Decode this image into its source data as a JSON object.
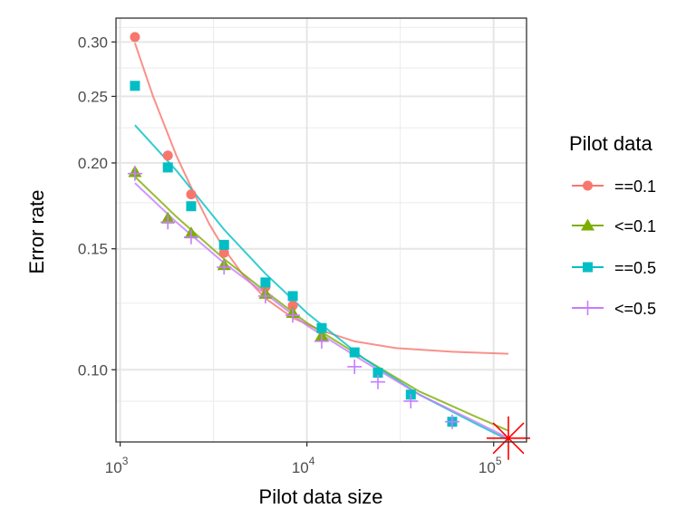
{
  "chart_data": {
    "type": "scatter",
    "xlabel": "Pilot data size",
    "ylabel": "Error rate",
    "xscale": "log10",
    "yscale": "log10",
    "xlim": [
      950,
      150000
    ],
    "ylim": [
      0.0785,
      0.325
    ],
    "x_ticks": [
      {
        "value": 1000,
        "base": "10",
        "exp": "3"
      },
      {
        "value": 10000,
        "base": "10",
        "exp": "4"
      },
      {
        "value": 100000,
        "base": "10",
        "exp": "5"
      }
    ],
    "y_ticks": [
      {
        "value": 0.1,
        "label": "0.10"
      },
      {
        "value": 0.15,
        "label": "0.15"
      },
      {
        "value": 0.2,
        "label": "0.20"
      },
      {
        "value": 0.25,
        "label": "0.25"
      },
      {
        "value": 0.3,
        "label": "0.30"
      }
    ],
    "grid": true,
    "legend": {
      "title": "Pilot data",
      "position": "right"
    },
    "series": [
      {
        "name": "==0.1",
        "color": "#F8766D",
        "marker": "circle",
        "points": [
          [
            1200,
            0.305
          ],
          [
            1800,
            0.205
          ],
          [
            2400,
            0.18
          ],
          [
            3600,
            0.148
          ],
          [
            6000,
            0.132
          ],
          [
            8400,
            0.124
          ]
        ],
        "fit": [
          [
            1200,
            0.299
          ],
          [
            1500,
            0.25
          ],
          [
            2000,
            0.205
          ],
          [
            2500,
            0.18
          ],
          [
            3000,
            0.163
          ],
          [
            3600,
            0.15
          ],
          [
            4500,
            0.138
          ],
          [
            6000,
            0.127
          ],
          [
            8400,
            0.119
          ],
          [
            12000,
            0.114
          ],
          [
            18000,
            0.11
          ],
          [
            30000,
            0.1075
          ],
          [
            60000,
            0.1062
          ],
          [
            120000,
            0.1055
          ]
        ]
      },
      {
        "name": "<=0.1",
        "color": "#7CAE00",
        "marker": "triangle",
        "points": [
          [
            1200,
            0.194
          ],
          [
            1800,
            0.166
          ],
          [
            2400,
            0.158
          ],
          [
            3600,
            0.142
          ],
          [
            6000,
            0.129
          ],
          [
            8400,
            0.121
          ],
          [
            12000,
            0.112
          ]
        ],
        "fit": [
          [
            1200,
            0.191
          ],
          [
            2000,
            0.167
          ],
          [
            3600,
            0.145
          ],
          [
            6000,
            0.13
          ],
          [
            10000,
            0.117
          ],
          [
            20000,
            0.104
          ],
          [
            40000,
            0.093
          ],
          [
            80000,
            0.0855
          ],
          [
            120000,
            0.0815
          ]
        ]
      },
      {
        "name": "==0.5",
        "color": "#00BFC4",
        "marker": "square",
        "points": [
          [
            1200,
            0.259
          ],
          [
            1800,
            0.197
          ],
          [
            2400,
            0.173
          ],
          [
            3600,
            0.152
          ],
          [
            6000,
            0.134
          ],
          [
            8400,
            0.128
          ],
          [
            12000,
            0.115
          ],
          [
            18000,
            0.106
          ],
          [
            24000,
            0.099
          ],
          [
            36000,
            0.092
          ],
          [
            60000,
            0.084
          ]
        ],
        "fit": [
          [
            1200,
            0.227
          ],
          [
            2000,
            0.195
          ],
          [
            3600,
            0.16
          ],
          [
            6000,
            0.138
          ],
          [
            10000,
            0.121
          ],
          [
            20000,
            0.104
          ],
          [
            40000,
            0.092
          ],
          [
            80000,
            0.0835
          ],
          [
            120000,
            0.079
          ]
        ]
      },
      {
        "name": "<=0.5",
        "color": "#C77CFF",
        "marker": "plus",
        "points": [
          [
            1200,
            0.193
          ],
          [
            1800,
            0.164
          ],
          [
            2400,
            0.156
          ],
          [
            3600,
            0.141
          ],
          [
            6000,
            0.128
          ],
          [
            8400,
            0.12
          ],
          [
            12000,
            0.11
          ],
          [
            18000,
            0.101
          ],
          [
            24000,
            0.096
          ],
          [
            36000,
            0.09
          ],
          [
            60000,
            0.084
          ]
        ],
        "fit": [
          [
            1200,
            0.187
          ],
          [
            2000,
            0.164
          ],
          [
            3600,
            0.143
          ],
          [
            6000,
            0.129
          ],
          [
            10000,
            0.116
          ],
          [
            20000,
            0.103
          ],
          [
            40000,
            0.092
          ],
          [
            80000,
            0.084
          ],
          [
            120000,
            0.0795
          ]
        ]
      }
    ],
    "highlight": {
      "marker": "star",
      "color": "#FF0000",
      "x": 120000,
      "y": 0.0795
    }
  }
}
